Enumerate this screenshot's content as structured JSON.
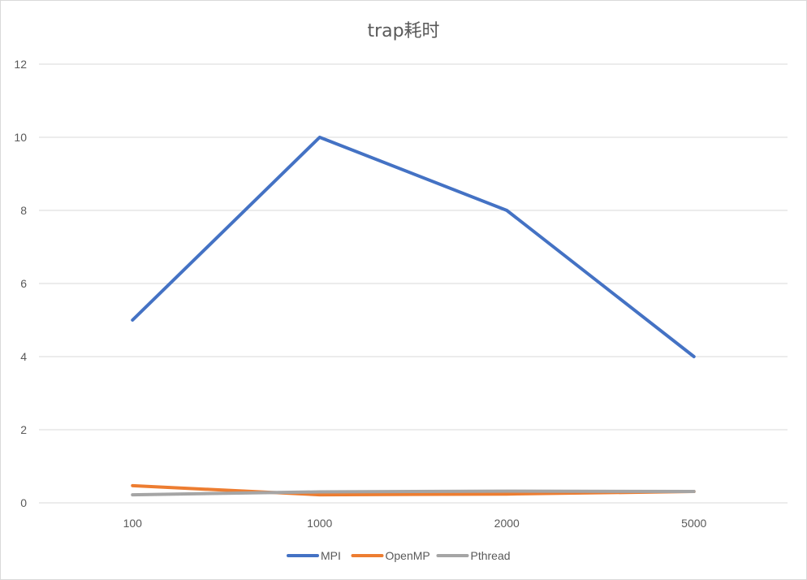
{
  "chart_data": {
    "type": "line",
    "title": "trap耗时",
    "xlabel": "",
    "ylabel": "",
    "categories": [
      "100",
      "1000",
      "2000",
      "5000"
    ],
    "ylim": [
      0,
      12
    ],
    "yticks": [
      "0",
      "2",
      "4",
      "6",
      "8",
      "10",
      "12"
    ],
    "grid": true,
    "legend_position": "bottom",
    "series": [
      {
        "name": "MPI",
        "color": "#4472C4",
        "values": [
          5.0,
          10.0,
          8.0,
          4.0
        ]
      },
      {
        "name": "OpenMP",
        "color": "#ED7D31",
        "values": [
          0.47,
          0.22,
          0.24,
          0.31
        ]
      },
      {
        "name": "Pthread",
        "color": "#A5A5A5",
        "values": [
          0.22,
          0.3,
          0.32,
          0.31
        ]
      }
    ]
  }
}
